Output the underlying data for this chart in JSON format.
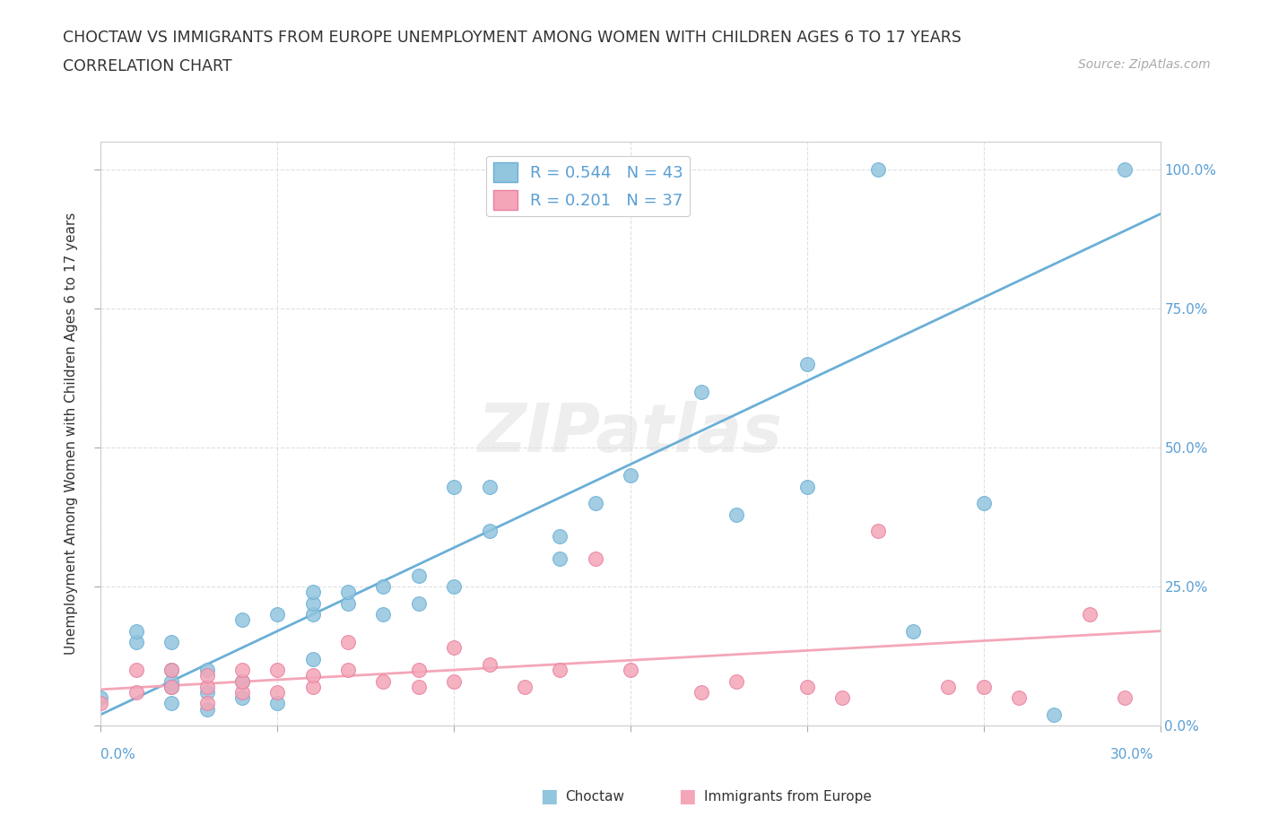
{
  "title_line1": "CHOCTAW VS IMMIGRANTS FROM EUROPE UNEMPLOYMENT AMONG WOMEN WITH CHILDREN AGES 6 TO 17 YEARS",
  "title_line2": "CORRELATION CHART",
  "source_text": "Source: ZipAtlas.com",
  "ylabel": "Unemployment Among Women with Children Ages 6 to 17 years",
  "xmin": 0.0,
  "xmax": 0.3,
  "ymin": 0.0,
  "ymax": 1.05,
  "watermark_zip": "ZIP",
  "watermark_atlas": "atlas",
  "legend_r1": "R = 0.544   N = 43",
  "legend_r2": "R = 0.201   N = 37",
  "choctaw_color": "#92c5de",
  "choctaw_edge": "#6aafd6",
  "europe_color": "#f4a6b8",
  "europe_edge": "#e87fa0",
  "choctaw_line_color": "#6aafd6",
  "europe_line_color": "#f4a6b8",
  "choctaw_x": [
    0.0,
    0.01,
    0.01,
    0.02,
    0.02,
    0.02,
    0.02,
    0.02,
    0.03,
    0.03,
    0.03,
    0.04,
    0.04,
    0.04,
    0.05,
    0.05,
    0.06,
    0.06,
    0.06,
    0.06,
    0.07,
    0.07,
    0.08,
    0.08,
    0.09,
    0.09,
    0.1,
    0.1,
    0.11,
    0.11,
    0.13,
    0.13,
    0.14,
    0.15,
    0.17,
    0.18,
    0.2,
    0.2,
    0.22,
    0.23,
    0.25,
    0.27,
    0.29
  ],
  "choctaw_y": [
    0.05,
    0.15,
    0.17,
    0.04,
    0.07,
    0.08,
    0.1,
    0.15,
    0.03,
    0.06,
    0.1,
    0.05,
    0.08,
    0.19,
    0.04,
    0.2,
    0.12,
    0.2,
    0.22,
    0.24,
    0.22,
    0.24,
    0.2,
    0.25,
    0.22,
    0.27,
    0.25,
    0.43,
    0.35,
    0.43,
    0.3,
    0.34,
    0.4,
    0.45,
    0.6,
    0.38,
    0.43,
    0.65,
    1.0,
    0.17,
    0.4,
    0.02,
    1.0
  ],
  "europe_x": [
    0.0,
    0.01,
    0.01,
    0.02,
    0.02,
    0.03,
    0.03,
    0.03,
    0.04,
    0.04,
    0.04,
    0.05,
    0.05,
    0.06,
    0.06,
    0.07,
    0.07,
    0.08,
    0.09,
    0.09,
    0.1,
    0.1,
    0.11,
    0.12,
    0.13,
    0.14,
    0.15,
    0.17,
    0.18,
    0.2,
    0.21,
    0.22,
    0.24,
    0.25,
    0.26,
    0.28,
    0.29
  ],
  "europe_y": [
    0.04,
    0.06,
    0.1,
    0.07,
    0.1,
    0.04,
    0.07,
    0.09,
    0.06,
    0.08,
    0.1,
    0.06,
    0.1,
    0.07,
    0.09,
    0.1,
    0.15,
    0.08,
    0.07,
    0.1,
    0.14,
    0.08,
    0.11,
    0.07,
    0.1,
    0.3,
    0.1,
    0.06,
    0.08,
    0.07,
    0.05,
    0.35,
    0.07,
    0.07,
    0.05,
    0.2,
    0.05
  ],
  "choctaw_slope": 3.0,
  "choctaw_intercept": 0.02,
  "europe_slope": 0.35,
  "europe_intercept": 0.065,
  "fig_bg_color": "#ffffff",
  "plot_bg_color": "#ffffff",
  "grid_color": "#dddddd",
  "text_color": "#5a9fd4",
  "label_color": "#333333",
  "source_color": "#aaaaaa"
}
